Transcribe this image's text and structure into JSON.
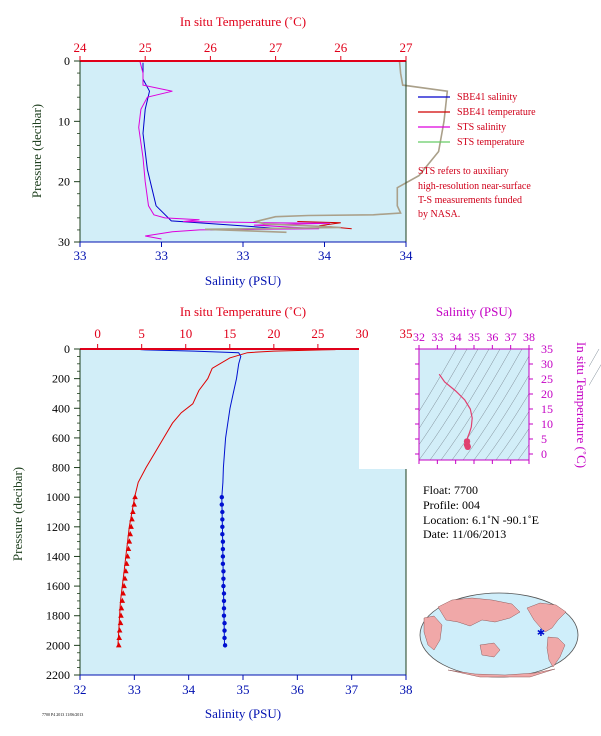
{
  "chart_data": [
    {
      "type": "line",
      "id": "near-surface",
      "top_axis_label": "In situ Temperature (˚C)",
      "bottom_axis_label": "Salinity (PSU)",
      "y_axis_label": "Pressure (decibar)",
      "temperature_ticks": [
        "24",
        "25",
        "26",
        "27",
        "26",
        "27"
      ],
      "temperature_lim": [
        24,
        27
      ],
      "salinity_ticks": [
        "33",
        "33",
        "33",
        "34",
        "34"
      ],
      "salinity_lim": [
        33,
        34
      ],
      "pressure_ticks": [
        "0",
        "10",
        "20",
        "30"
      ],
      "pressure_lim": [
        0,
        30
      ],
      "series": [
        {
          "name": "SBE41 salinity",
          "color": "#0000cc",
          "x_axis": "temperature_equiv",
          "points": [
            [
              24.58,
              0.3
            ],
            [
              24.58,
              3
            ],
            [
              24.64,
              5
            ],
            [
              24.6,
              8
            ],
            [
              24.58,
              12
            ],
            [
              24.62,
              18
            ],
            [
              24.7,
              24
            ],
            [
              24.84,
              26.5
            ],
            [
              25.4,
              27.2
            ],
            [
              25.85,
              27.8
            ],
            [
              25.2,
              28.0
            ]
          ]
        },
        {
          "name": "SBE41 temperature",
          "color": "#d00000",
          "x_axis": "temperature",
          "points": [
            [
              26.0,
              26.6
            ],
            [
              26.4,
              26.8
            ],
            [
              26.2,
              27.3
            ],
            [
              26.5,
              27.8
            ]
          ]
        },
        {
          "name": "STS salinity",
          "color": "#dd00dd",
          "x_axis": "temperature_equiv",
          "points": [
            [
              24.55,
              0
            ],
            [
              24.58,
              2
            ],
            [
              24.58,
              4
            ],
            [
              24.85,
              5
            ],
            [
              24.62,
              6
            ],
            [
              24.56,
              8
            ],
            [
              24.54,
              11
            ],
            [
              24.58,
              16
            ],
            [
              24.6,
              20
            ],
            [
              24.63,
              24
            ],
            [
              24.68,
              25.5
            ],
            [
              24.78,
              26
            ],
            [
              25.1,
              26.3
            ],
            [
              24.95,
              26.6
            ],
            [
              25.7,
              26.8
            ],
            [
              26.3,
              26.9
            ],
            [
              25.6,
              27.2
            ],
            [
              25.9,
              27.5
            ],
            [
              26.2,
              27.8
            ],
            [
              25.1,
              28.0
            ],
            [
              24.85,
              28.3
            ],
            [
              24.6,
              29.0
            ],
            [
              24.75,
              29.5
            ]
          ]
        },
        {
          "name": "STS temperature",
          "color": "#aaa08a",
          "x_axis": "temperature",
          "points": [
            [
              26.94,
              0
            ],
            [
              26.95,
              2
            ],
            [
              26.97,
              4
            ],
            [
              27.38,
              5
            ],
            [
              27.35,
              10
            ],
            [
              27.3,
              15
            ],
            [
              27.12,
              19
            ],
            [
              26.92,
              21
            ],
            [
              26.92,
              24
            ],
            [
              26.95,
              25.2
            ],
            [
              26.7,
              25.5
            ],
            [
              26.1,
              25.6
            ],
            [
              25.8,
              25.8
            ],
            [
              25.62,
              26.6
            ],
            [
              25.7,
              27.0
            ],
            [
              26.2,
              27.4
            ],
            [
              26.4,
              27.6
            ],
            [
              25.15,
              27.9
            ],
            [
              25.6,
              28.2
            ],
            [
              25.9,
              28.4
            ]
          ]
        }
      ],
      "legend": [
        "SBE41 salinity",
        "SBE41 temperature",
        "STS salinity",
        "STS temperature"
      ],
      "legend_position": "right",
      "note": [
        "STS refers to auxiliary",
        "high-resolution near-surface",
        "T-S measurements funded",
        "by NASA."
      ]
    },
    {
      "type": "line",
      "id": "full-profile",
      "top_axis_label": "In situ Temperature (˚C)",
      "bottom_axis_label": "Salinity (PSU)",
      "y_axis_label": "Pressure (decibar)",
      "temperature_ticks": [
        "0",
        "5",
        "10",
        "15",
        "20",
        "25",
        "30",
        "35"
      ],
      "temperature_lim": [
        -2,
        35
      ],
      "salinity_ticks": [
        "32",
        "33",
        "34",
        "35",
        "36",
        "37",
        "38"
      ],
      "salinity_lim": [
        32,
        38
      ],
      "pressure_ticks": [
        "0",
        "200",
        "400",
        "600",
        "800",
        "1000",
        "1200",
        "1400",
        "1600",
        "1800",
        "2000",
        "2200"
      ],
      "pressure_lim": [
        0,
        2200
      ],
      "series": [
        {
          "name": "Temperature",
          "color": "#e00000",
          "x_axis": "temperature",
          "points": [
            [
              26.6,
              0
            ],
            [
              27.0,
              4
            ],
            [
              25.5,
              6
            ],
            [
              20.0,
              14
            ],
            [
              17.0,
              25
            ],
            [
              15.0,
              60
            ],
            [
              13.0,
              130
            ],
            [
              12.5,
              200
            ],
            [
              11.5,
              280
            ],
            [
              10.8,
              370
            ],
            [
              9.5,
              430
            ],
            [
              8.5,
              500
            ],
            [
              7.5,
              600
            ],
            [
              6.5,
              700
            ],
            [
              5.5,
              800
            ],
            [
              4.6,
              900
            ],
            [
              4.2,
              1000
            ],
            [
              3.9,
              1100
            ],
            [
              3.6,
              1200
            ],
            [
              3.4,
              1300
            ],
            [
              3.2,
              1400
            ],
            [
              3.0,
              1500
            ],
            [
              2.8,
              1600
            ],
            [
              2.6,
              1700
            ],
            [
              2.5,
              1800
            ],
            [
              2.4,
              1900
            ],
            [
              2.3,
              2000
            ]
          ],
          "markers": [
            [
              4.25,
              1000
            ],
            [
              4.15,
              1050
            ],
            [
              4.0,
              1100
            ],
            [
              3.9,
              1150
            ],
            [
              3.8,
              1200
            ],
            [
              3.7,
              1250
            ],
            [
              3.6,
              1300
            ],
            [
              3.5,
              1350
            ],
            [
              3.4,
              1400
            ],
            [
              3.3,
              1450
            ],
            [
              3.2,
              1500
            ],
            [
              3.1,
              1550
            ],
            [
              3.0,
              1600
            ],
            [
              2.9,
              1650
            ],
            [
              2.8,
              1700
            ],
            [
              2.7,
              1750
            ],
            [
              2.65,
              1800
            ],
            [
              2.6,
              1850
            ],
            [
              2.5,
              1900
            ],
            [
              2.45,
              1950
            ],
            [
              2.4,
              2000
            ]
          ]
        },
        {
          "name": "Salinity",
          "color": "#0010d0",
          "x_axis": "salinity",
          "points": [
            [
              33.06,
              0
            ],
            [
              33.12,
              4
            ],
            [
              33.2,
              6
            ],
            [
              34.1,
              14
            ],
            [
              34.92,
              25
            ],
            [
              34.96,
              50
            ],
            [
              34.92,
              100
            ],
            [
              34.88,
              200
            ],
            [
              34.82,
              300
            ],
            [
              34.76,
              400
            ],
            [
              34.72,
              500
            ],
            [
              34.68,
              600
            ],
            [
              34.66,
              700
            ],
            [
              34.64,
              800
            ],
            [
              34.63,
              900
            ],
            [
              34.61,
              1000
            ],
            [
              34.62,
              1200
            ],
            [
              34.63,
              1400
            ],
            [
              34.64,
              1600
            ],
            [
              34.65,
              1800
            ],
            [
              34.66,
              2000
            ]
          ],
          "markers": [
            [
              34.61,
              1000
            ],
            [
              34.61,
              1050
            ],
            [
              34.62,
              1100
            ],
            [
              34.62,
              1150
            ],
            [
              34.62,
              1200
            ],
            [
              34.62,
              1250
            ],
            [
              34.63,
              1300
            ],
            [
              34.63,
              1350
            ],
            [
              34.63,
              1400
            ],
            [
              34.63,
              1450
            ],
            [
              34.64,
              1500
            ],
            [
              34.64,
              1550
            ],
            [
              34.64,
              1600
            ],
            [
              34.65,
              1650
            ],
            [
              34.65,
              1700
            ],
            [
              34.65,
              1750
            ],
            [
              34.65,
              1800
            ],
            [
              34.66,
              1850
            ],
            [
              34.66,
              1900
            ],
            [
              34.66,
              1950
            ],
            [
              34.67,
              2000
            ]
          ]
        }
      ]
    },
    {
      "type": "scatter",
      "id": "ts-diagram",
      "top_axis_label": "Salinity (PSU)",
      "right_axis_label": "In situ Temperature (˚C)",
      "salinity_ticks": [
        "32",
        "33",
        "34",
        "35",
        "36",
        "37",
        "38"
      ],
      "salinity_lim": [
        32,
        38
      ],
      "temperature_ticks": [
        "0",
        "5",
        "10",
        "15",
        "20",
        "25",
        "30",
        "35"
      ],
      "temperature_lim": [
        -2,
        35
      ],
      "series": [
        {
          "name": "T-S curve",
          "color": "#e04070",
          "points": [
            [
              33.1,
              26.6
            ],
            [
              33.4,
              24.0
            ],
            [
              34.0,
              21.0
            ],
            [
              34.5,
              18.0
            ],
            [
              34.8,
              15.0
            ],
            [
              34.9,
              12.0
            ],
            [
              34.85,
              9.0
            ],
            [
              34.75,
              7.0
            ],
            [
              34.65,
              5.5
            ],
            [
              34.62,
              4.2
            ],
            [
              34.62,
              3.0
            ],
            [
              34.66,
              2.4
            ]
          ]
        }
      ],
      "grid": "density contours"
    }
  ],
  "info": {
    "float": "Float:  7700",
    "profile": "Profile:  004",
    "location": "Location:  6.1˚N  -90.1˚E",
    "date": "Date:  11/06/2013"
  },
  "footer": "7700 P4 2013 11/06/2013",
  "colors": {
    "plot_bg": "#d2eef8",
    "temperature": "#e0001a",
    "salinity": "#0010b0",
    "pressure": "#1c3d1c",
    "ts_axes": "#c400c4",
    "map_ocean": "#cfeefa",
    "map_land": "#f0a8a8"
  }
}
